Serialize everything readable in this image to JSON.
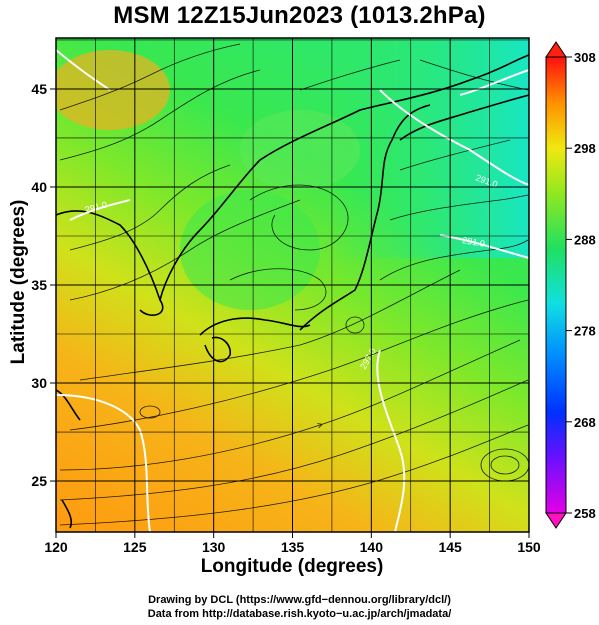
{
  "title": "MSM 12Z15Jun2023 (1013.2hPa)",
  "x_axis": {
    "label": "Longitude (degrees)",
    "min": 120,
    "max": 150,
    "ticks": [
      "120",
      "125",
      "130",
      "135",
      "140",
      "145",
      "150"
    ]
  },
  "y_axis": {
    "label": "Latitude  (degrees)",
    "min": 22.4,
    "max": 47.6,
    "ticks": [
      "25",
      "30",
      "35",
      "40",
      "45"
    ]
  },
  "colorbar": {
    "min": 258,
    "max": 308,
    "ticks": [
      "308",
      "298",
      "288",
      "278",
      "268",
      "258"
    ]
  },
  "contour_labels": [
    "291.0",
    "291.0",
    "291.0",
    "297.0"
  ],
  "credits": {
    "line1": "Drawing by DCL (https://www.gfd−dennou.org/library/dcl/)",
    "line2": "Data from http://database.rish.kyoto−u.ac.jp/arch/jmadata/"
  },
  "colors": {
    "warm_south": "#ff9a10",
    "mid": "#cfe21a",
    "green": "#2ee84a",
    "cool_ne": "#16e6c8",
    "land_outline": "#000000",
    "contour": "#ffffff"
  }
}
